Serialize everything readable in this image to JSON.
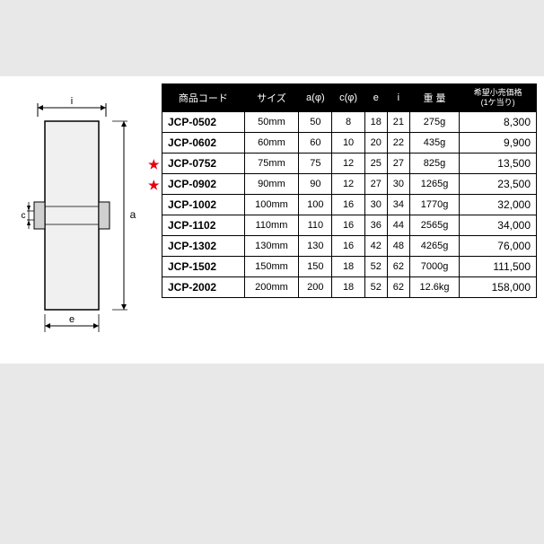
{
  "diagram": {
    "labels": {
      "i": "i",
      "a": "a",
      "c": "c",
      "e": "e"
    }
  },
  "table": {
    "headers": {
      "code": "商品コード",
      "size": "サイズ",
      "a": "a(φ)",
      "c": "c(φ)",
      "e": "e",
      "i": "i",
      "weight": "重 量",
      "price": "希望小売価格",
      "price_sub": "(1ケ当り)"
    },
    "rows": [
      {
        "star": false,
        "code": "JCP-0502",
        "size": "50mm",
        "a": "50",
        "c": "8",
        "e": "18",
        "i": "21",
        "weight": "275g",
        "price": "8,300"
      },
      {
        "star": false,
        "code": "JCP-0602",
        "size": "60mm",
        "a": "60",
        "c": "10",
        "e": "20",
        "i": "22",
        "weight": "435g",
        "price": "9,900"
      },
      {
        "star": true,
        "code": "JCP-0752",
        "size": "75mm",
        "a": "75",
        "c": "12",
        "e": "25",
        "i": "27",
        "weight": "825g",
        "price": "13,500"
      },
      {
        "star": true,
        "code": "JCP-0902",
        "size": "90mm",
        "a": "90",
        "c": "12",
        "e": "27",
        "i": "30",
        "weight": "1265g",
        "price": "23,500"
      },
      {
        "star": false,
        "code": "JCP-1002",
        "size": "100mm",
        "a": "100",
        "c": "16",
        "e": "30",
        "i": "34",
        "weight": "1770g",
        "price": "32,000"
      },
      {
        "star": false,
        "code": "JCP-1102",
        "size": "110mm",
        "a": "110",
        "c": "16",
        "e": "36",
        "i": "44",
        "weight": "2565g",
        "price": "34,000"
      },
      {
        "star": false,
        "code": "JCP-1302",
        "size": "130mm",
        "a": "130",
        "c": "16",
        "e": "42",
        "i": "48",
        "weight": "4265g",
        "price": "76,000"
      },
      {
        "star": false,
        "code": "JCP-1502",
        "size": "150mm",
        "a": "150",
        "c": "18",
        "e": "52",
        "i": "62",
        "weight": "7000g",
        "price": "111,500"
      },
      {
        "star": false,
        "code": "JCP-2002",
        "size": "200mm",
        "a": "200",
        "c": "18",
        "e": "52",
        "i": "62",
        "weight": "12.6kg",
        "price": "158,000"
      }
    ]
  }
}
